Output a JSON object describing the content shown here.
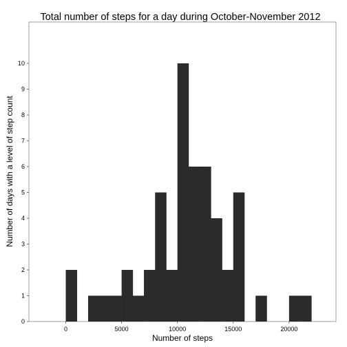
{
  "chart_data": {
    "type": "bar",
    "title": "Total number of steps for a day during October-November 2012",
    "xlabel": "Number of steps",
    "ylabel": "Number of days with a level of step count",
    "xlim": [
      -3300,
      24200
    ],
    "ylim": [
      0,
      11.6
    ],
    "x_ticks": [
      0,
      5000,
      10000,
      15000,
      20000
    ],
    "y_ticks": [
      0,
      1,
      2,
      3,
      4,
      5,
      6,
      7,
      8,
      9,
      10
    ],
    "bin_width": 1000,
    "bins": [
      {
        "start": 0,
        "count": 2
      },
      {
        "start": 2000,
        "count": 1
      },
      {
        "start": 3000,
        "count": 1
      },
      {
        "start": 4000,
        "count": 1
      },
      {
        "start": 5000,
        "count": 2
      },
      {
        "start": 6000,
        "count": 1
      },
      {
        "start": 7000,
        "count": 2
      },
      {
        "start": 8000,
        "count": 5
      },
      {
        "start": 9000,
        "count": 2
      },
      {
        "start": 10000,
        "count": 10
      },
      {
        "start": 11000,
        "count": 6
      },
      {
        "start": 12000,
        "count": 6
      },
      {
        "start": 13000,
        "count": 4
      },
      {
        "start": 14000,
        "count": 2
      },
      {
        "start": 15000,
        "count": 5
      },
      {
        "start": 17000,
        "count": 1
      },
      {
        "start": 20000,
        "count": 1
      },
      {
        "start": 21000,
        "count": 1
      }
    ],
    "bar_color": "#2b2b2b",
    "grid": false,
    "legend": "none"
  }
}
